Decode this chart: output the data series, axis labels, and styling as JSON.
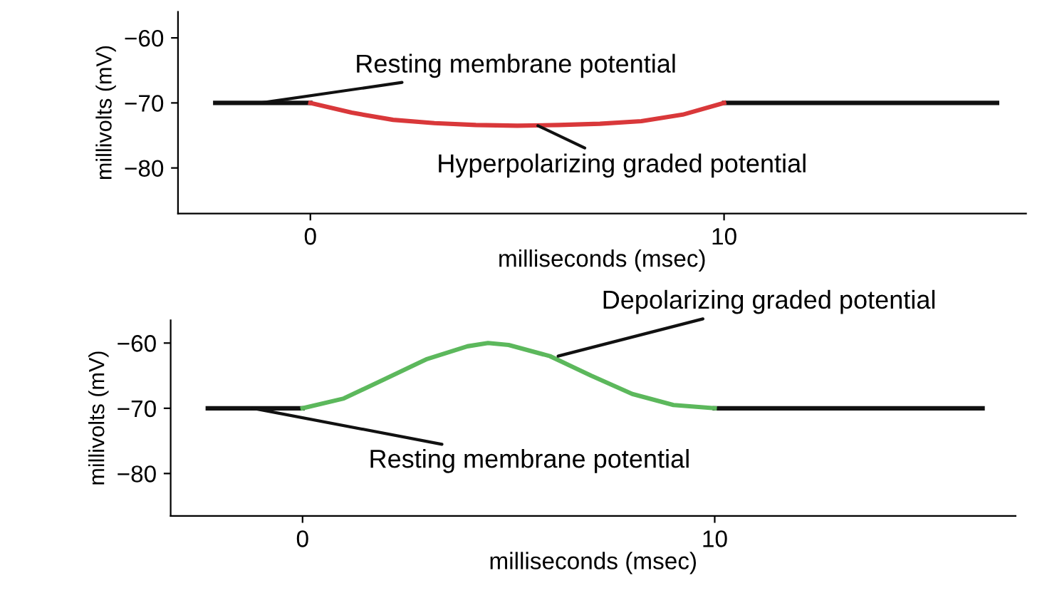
{
  "chart_data": [
    {
      "type": "line",
      "xlabel": "milliseconds (msec)",
      "ylabel": "millivolts (mV)",
      "xlim": [
        -3.2,
        17.3
      ],
      "ylim": [
        -87,
        -56
      ],
      "xticks": [
        0,
        10
      ],
      "yticks": [
        {
          "value": -60,
          "label": "−60"
        },
        {
          "value": -70,
          "label": "−70"
        },
        {
          "value": -80,
          "label": "−80"
        }
      ],
      "grid": false,
      "legend": false,
      "marker": "none",
      "line_style": "solid",
      "series": [
        {
          "color": "#111111",
          "x": [
            -2.3,
            0,
            5,
            10,
            16.6
          ],
          "values": [
            -70,
            -70,
            null,
            -70,
            -70
          ]
        },
        {
          "color": "#d9383a",
          "x": [
            0,
            1,
            2,
            3,
            4,
            5,
            6,
            7,
            8,
            9,
            10
          ],
          "values": [
            -70,
            -71.5,
            -72.6,
            -73.1,
            -73.4,
            -73.5,
            -73.4,
            -73.2,
            -72.8,
            -71.8,
            -70
          ]
        }
      ],
      "annotations": [
        {
          "text": "Resting membrane potential",
          "x": -1.2,
          "y": -70
        },
        {
          "text": "Hyperpolarizing graded potential",
          "x": 5.5,
          "y": -73.5
        }
      ]
    },
    {
      "type": "line",
      "xlabel": "milliseconds (msec)",
      "ylabel": "millivolts (mV)",
      "xlim": [
        -3.2,
        17.3
      ],
      "ylim": [
        -86.5,
        -56.5
      ],
      "xticks": [
        0,
        10
      ],
      "yticks": [
        {
          "value": -60,
          "label": "−60"
        },
        {
          "value": -70,
          "label": "−70"
        },
        {
          "value": -80,
          "label": "−80"
        }
      ],
      "grid": false,
      "legend": false,
      "marker": "none",
      "line_style": "solid",
      "series": [
        {
          "color": "#111111",
          "x": [
            -2.3,
            0,
            5,
            10,
            16.5
          ],
          "values": [
            -70,
            -70,
            null,
            -70,
            -70
          ]
        },
        {
          "color": "#5cb85c",
          "x": [
            0,
            1,
            2,
            3,
            4,
            4.5,
            5,
            6,
            7,
            8,
            9,
            10
          ],
          "values": [
            -70,
            -68.5,
            -65.5,
            -62.5,
            -60.5,
            -60,
            -60.3,
            -62,
            -65,
            -67.8,
            -69.5,
            -70
          ]
        }
      ],
      "annotations": [
        {
          "text": "Depolarizing graded potential",
          "x": 6.2,
          "y": -62
        },
        {
          "text": "Resting membrane potential",
          "x": -1.2,
          "y": -70
        }
      ]
    }
  ]
}
